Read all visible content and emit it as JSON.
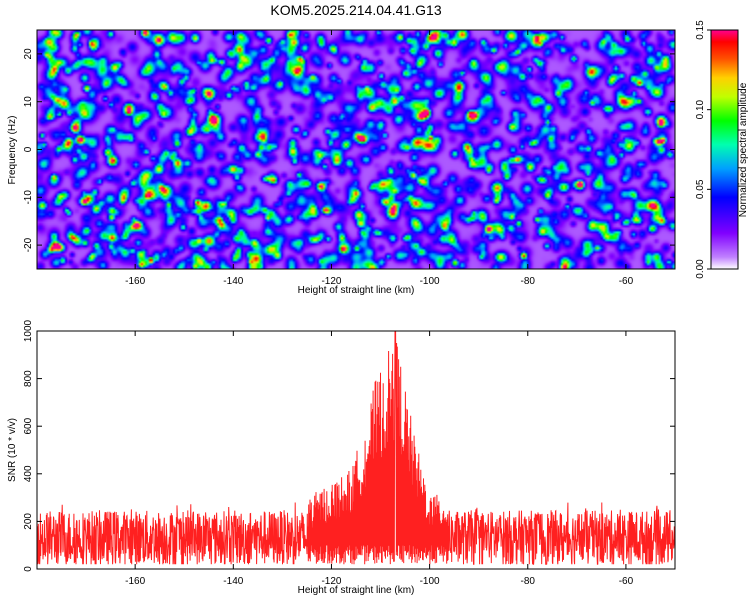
{
  "title": "KOM5.2025.214.04.41.G13",
  "chart_data": [
    {
      "type": "heatmap",
      "xlabel": "Height of straight line (km)",
      "ylabel": "Frequency (Hz)",
      "xlim": [
        -180,
        -50
      ],
      "ylim": [
        -25,
        25
      ],
      "x_ticks": [
        "-160",
        "-140",
        "-120",
        "-100",
        "-80",
        "-60"
      ],
      "x_tick_values": [
        -160,
        -140,
        -120,
        -100,
        -80,
        -60
      ],
      "y_ticks": [
        "-20",
        "-10",
        "0",
        "10",
        "20"
      ],
      "y_tick_values": [
        -20,
        -10,
        0,
        10,
        20
      ],
      "colorbar": {
        "label": "Normalized spectral amplitude",
        "range": [
          0.0,
          0.15
        ],
        "ticks": [
          "0.00",
          "0.05",
          "0.10",
          "0.15"
        ],
        "tick_values": [
          0.0,
          0.05,
          0.1,
          0.15
        ],
        "colors": [
          "#ffffff",
          "#8000ff",
          "#0000ff",
          "#00a0ff",
          "#00ffa0",
          "#00ff00",
          "#ffff00",
          "#ff8000",
          "#ff0000",
          "#ff00a0"
        ]
      },
      "description_of_values": "noise-like field of speckles, mostly 0.00-0.06, with isolated peaks up to ~0.14",
      "peaks": [
        {
          "x": -157,
          "y": -23,
          "value": 0.14
        },
        {
          "x": -100,
          "y": 2.5,
          "value": 0.14
        },
        {
          "x": -81,
          "y": -22,
          "value": 0.13
        },
        {
          "x": -170,
          "y": 13,
          "value": 0.11
        },
        {
          "x": -165,
          "y": -14,
          "value": 0.1
        },
        {
          "x": -95,
          "y": -23.5,
          "value": 0.1
        },
        {
          "x": -115,
          "y": -20.5,
          "value": 0.09
        },
        {
          "x": -133,
          "y": 23,
          "value": 0.09
        },
        {
          "x": -175,
          "y": -23,
          "value": 0.08
        },
        {
          "x": -60,
          "y": 2,
          "value": 0.08
        },
        {
          "x": -67,
          "y": 10,
          "value": 0.09
        }
      ]
    },
    {
      "type": "line",
      "xlabel": "Height of straight line (km)",
      "ylabel": "SNR (10 * v/v)",
      "xlim": [
        -180,
        -50
      ],
      "ylim": [
        0,
        1000
      ],
      "x_ticks": [
        "-160",
        "-140",
        "-120",
        "-100",
        "-80",
        "-60"
      ],
      "x_tick_values": [
        -160,
        -140,
        -120,
        -100,
        -80,
        -60
      ],
      "y_ticks": [
        "0",
        "200",
        "400",
        "600",
        "800",
        "1000"
      ],
      "y_tick_values": [
        0,
        200,
        400,
        600,
        800,
        1000
      ],
      "series_color": "#ff2020",
      "noise_floor": {
        "baseline": 130,
        "range": [
          20,
          280
        ]
      },
      "peak": {
        "x": -107,
        "y": 1000
      },
      "envelope": [
        {
          "x": -180,
          "y": 250
        },
        {
          "x": -150,
          "y": 260
        },
        {
          "x": -125,
          "y": 300
        },
        {
          "x": -116,
          "y": 420
        },
        {
          "x": -113,
          "y": 620
        },
        {
          "x": -111,
          "y": 800
        },
        {
          "x": -109,
          "y": 880
        },
        {
          "x": -107,
          "y": 1000
        },
        {
          "x": -105,
          "y": 780
        },
        {
          "x": -103,
          "y": 550
        },
        {
          "x": -100,
          "y": 320
        },
        {
          "x": -90,
          "y": 270
        },
        {
          "x": -50,
          "y": 250
        }
      ]
    }
  ]
}
